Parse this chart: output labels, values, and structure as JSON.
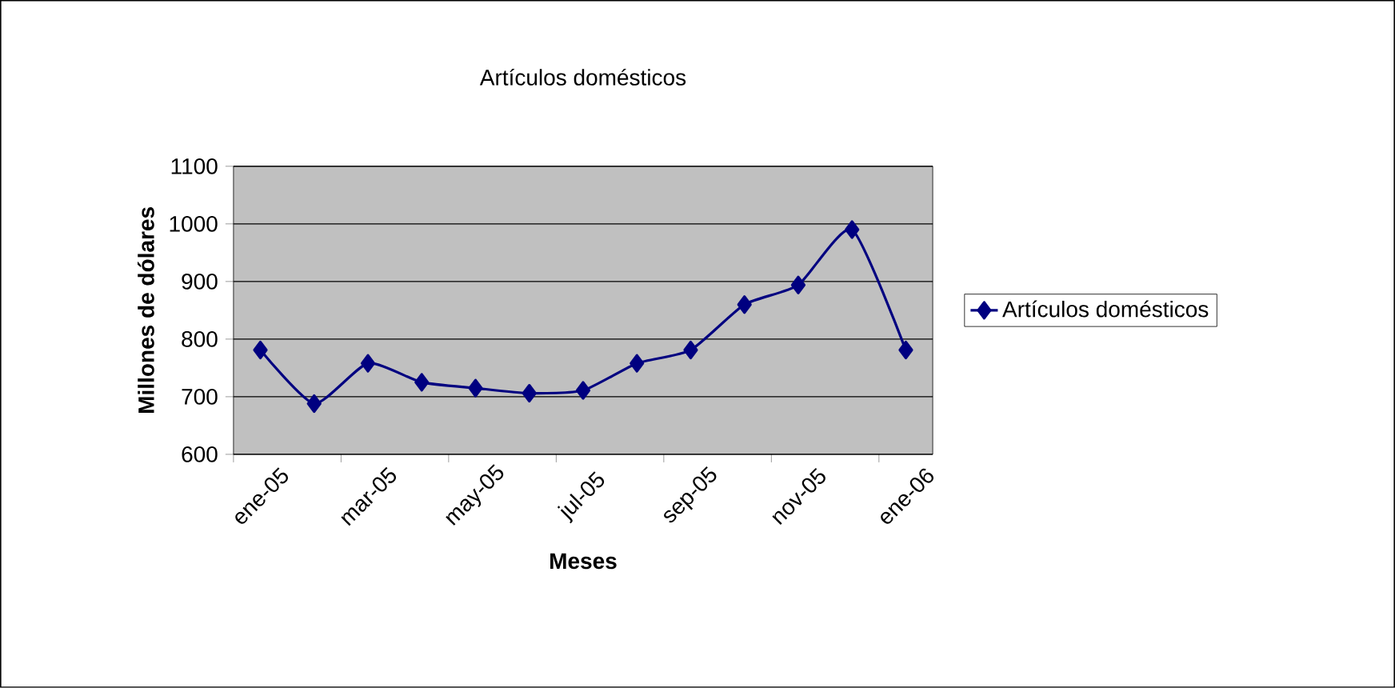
{
  "chart_data": {
    "type": "line",
    "title": "Artículos domésticos",
    "xlabel": "Meses",
    "ylabel": "Millones de  dólares",
    "categories": [
      "ene-05",
      null,
      "mar-05",
      null,
      "may-05",
      null,
      "jul-05",
      null,
      "sep-05",
      null,
      "nov-05",
      null,
      "ene-06"
    ],
    "series": [
      {
        "name": "Artículos domésticos",
        "color": "#000080",
        "values": [
          781,
          688,
          758,
          725,
          715,
          706,
          711,
          758,
          781,
          860,
          894,
          990,
          781
        ]
      }
    ],
    "ylim": [
      600,
      1100
    ],
    "yticks": [
      600,
      700,
      800,
      900,
      1000,
      1100
    ],
    "grid": "y",
    "legend": "right",
    "marker": "diamond",
    "line_style": "solid"
  }
}
